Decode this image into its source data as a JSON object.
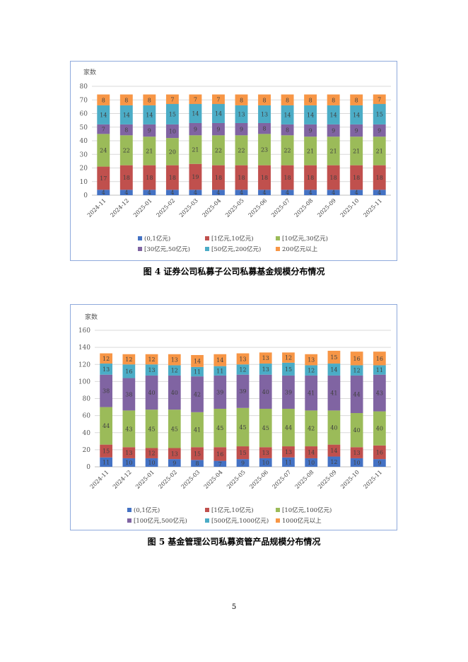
{
  "page_number": "5",
  "chart_data": [
    {
      "type": "bar",
      "stacked": true,
      "title": "",
      "caption": "图 4   证券公司私募子公司私募基金规模分布情况",
      "ylabel": "家数",
      "ylim": [
        0,
        80
      ],
      "yticks": [
        0,
        10,
        20,
        30,
        40,
        50,
        60,
        70,
        80
      ],
      "grid": true,
      "legend_position": "bottom",
      "categories": [
        "2024-11",
        "2024-12",
        "2025-01",
        "2025-02",
        "2025-03",
        "2025-04",
        "2025-05",
        "2025-06",
        "2025-07",
        "2025-08",
        "2025-09",
        "2025-10",
        "2025-11"
      ],
      "series": [
        {
          "name": "(0,1亿元)",
          "color": "#4472c4",
          "values": [
            4,
            4,
            4,
            4,
            4,
            4,
            4,
            4,
            4,
            4,
            4,
            4,
            4
          ]
        },
        {
          "name": "[1亿元,10亿元)",
          "color": "#c0504d",
          "values": [
            17,
            18,
            18,
            18,
            19,
            18,
            18,
            18,
            18,
            18,
            18,
            18,
            18
          ]
        },
        {
          "name": "[10亿元,30亿元)",
          "color": "#9bbb59",
          "values": [
            24,
            22,
            21,
            20,
            21,
            22,
            22,
            23,
            22,
            21,
            21,
            21,
            21
          ]
        },
        {
          "name": "[30亿元,50亿元)",
          "color": "#8064a2",
          "values": [
            7,
            8,
            9,
            10,
            9,
            9,
            9,
            8,
            8,
            9,
            9,
            9,
            9
          ]
        },
        {
          "name": "[50亿元,200亿元)",
          "color": "#4bacc6",
          "values": [
            14,
            14,
            14,
            15,
            14,
            14,
            13,
            13,
            14,
            14,
            14,
            14,
            15
          ]
        },
        {
          "name": "200亿元以上",
          "color": "#f79646",
          "values": [
            8,
            8,
            8,
            7,
            7,
            7,
            8,
            8,
            8,
            8,
            8,
            8,
            7
          ]
        }
      ]
    },
    {
      "type": "bar",
      "stacked": true,
      "title": "",
      "caption": "图 5   基金管理公司私募资管产品规模分布情况",
      "ylabel": "家数",
      "ylim": [
        0,
        160
      ],
      "yticks": [
        0,
        20,
        40,
        60,
        80,
        100,
        120,
        140,
        160
      ],
      "grid": true,
      "legend_position": "bottom",
      "categories": [
        "2024-11",
        "2024-12",
        "2025-01",
        "2025-02",
        "2025-03",
        "2025-04",
        "2025-05",
        "2025-06",
        "2025-07",
        "2025-08",
        "2025-09",
        "2025-10",
        "2025-11"
      ],
      "series": [
        {
          "name": "(0,1亿元)",
          "color": "#4472c4",
          "values": [
            11,
            10,
            10,
            9,
            8,
            7,
            9,
            10,
            11,
            10,
            12,
            10,
            9
          ]
        },
        {
          "name": "[1亿元,10亿元)",
          "color": "#c0504d",
          "values": [
            15,
            13,
            12,
            13,
            15,
            16,
            15,
            13,
            13,
            14,
            14,
            13,
            16
          ]
        },
        {
          "name": "[10亿元,100亿元)",
          "color": "#9bbb59",
          "values": [
            44,
            43,
            45,
            45,
            41,
            45,
            45,
            45,
            44,
            42,
            40,
            40,
            40
          ]
        },
        {
          "name": "[100亿元,500亿元)",
          "color": "#8064a2",
          "values": [
            38,
            38,
            40,
            40,
            42,
            39,
            39,
            40,
            39,
            41,
            41,
            44,
            43
          ]
        },
        {
          "name": "[500亿元,1000亿元)",
          "color": "#4bacc6",
          "values": [
            13,
            16,
            13,
            12,
            11,
            11,
            12,
            13,
            15,
            12,
            14,
            12,
            11
          ]
        },
        {
          "name": "1000亿元以上",
          "color": "#f79646",
          "values": [
            12,
            12,
            12,
            13,
            14,
            14,
            13,
            13,
            12,
            13,
            15,
            16,
            16
          ]
        }
      ]
    }
  ]
}
